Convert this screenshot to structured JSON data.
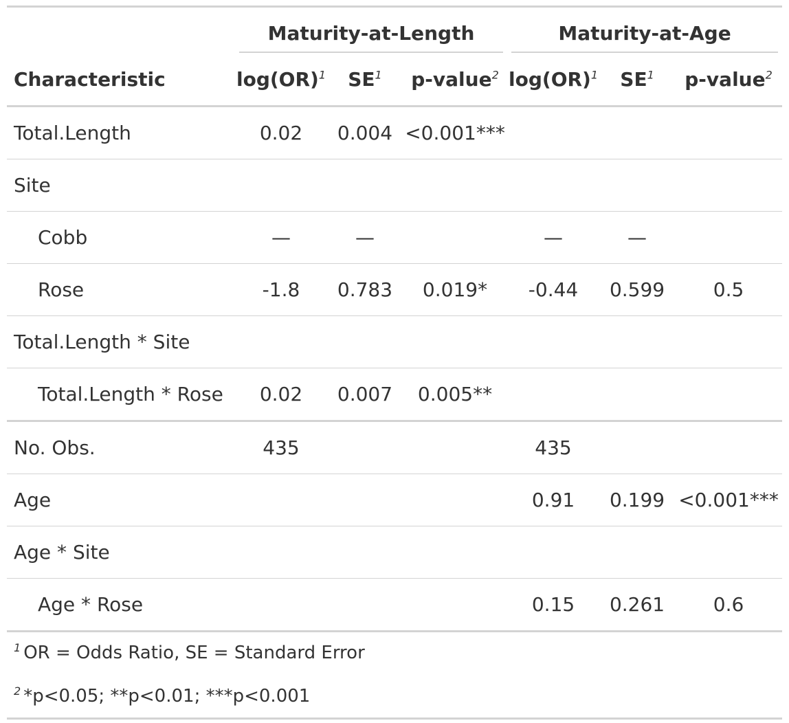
{
  "table": {
    "spanners": {
      "length": "Maturity-at-Length",
      "age": "Maturity-at-Age"
    },
    "headers": {
      "characteristic": "Characteristic",
      "log_or": "log(OR)",
      "se": "SE",
      "p_value": "p-value",
      "fn_mark_1": "1",
      "fn_mark_2": "2"
    },
    "rows": [
      {
        "label": "Total.Length",
        "indent": false,
        "lor1": "0.02",
        "se1": "0.004",
        "p1": "<0.001***",
        "lor2": "",
        "se2": "",
        "p2": ""
      },
      {
        "label": "Site",
        "indent": false,
        "lor1": "",
        "se1": "",
        "p1": "",
        "lor2": "",
        "se2": "",
        "p2": ""
      },
      {
        "label": "Cobb",
        "indent": true,
        "lor1": "—",
        "se1": "—",
        "p1": "",
        "lor2": "—",
        "se2": "—",
        "p2": ""
      },
      {
        "label": "Rose",
        "indent": true,
        "lor1": "-1.8",
        "se1": "0.783",
        "p1": "0.019*",
        "lor2": "-0.44",
        "se2": "0.599",
        "p2": "0.5"
      },
      {
        "label": "Total.Length * Site",
        "indent": false,
        "lor1": "",
        "se1": "",
        "p1": "",
        "lor2": "",
        "se2": "",
        "p2": ""
      },
      {
        "label": "Total.Length * Rose",
        "indent": true,
        "lor1": "0.02",
        "se1": "0.007",
        "p1": "0.005**",
        "lor2": "",
        "se2": "",
        "p2": ""
      },
      {
        "label": "No. Obs.",
        "indent": false,
        "lor1": "435",
        "se1": "",
        "p1": "",
        "lor2": "435",
        "se2": "",
        "p2": ""
      },
      {
        "label": "Age",
        "indent": false,
        "lor1": "",
        "se1": "",
        "p1": "",
        "lor2": "0.91",
        "se2": "0.199",
        "p2": "<0.001***"
      },
      {
        "label": "Age * Site",
        "indent": false,
        "lor1": "",
        "se1": "",
        "p1": "",
        "lor2": "",
        "se2": "",
        "p2": ""
      },
      {
        "label": "Age * Rose",
        "indent": true,
        "lor1": "",
        "se1": "",
        "p1": "",
        "lor2": "0.15",
        "se2": "0.261",
        "p2": "0.6"
      }
    ]
  },
  "footnotes": [
    {
      "mark": "1",
      "text": "OR = Odds Ratio, SE = Standard Error"
    },
    {
      "mark": "2",
      "text": "*p<0.05; **p<0.01; ***p<0.001"
    }
  ]
}
